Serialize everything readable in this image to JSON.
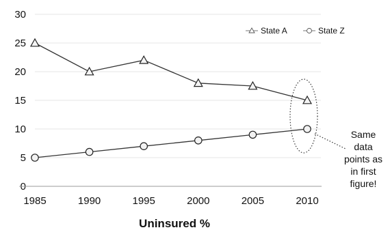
{
  "chart_data": {
    "type": "line",
    "title": "",
    "xlabel": "Uninsured %",
    "ylabel": "",
    "x": [
      1985,
      1990,
      1995,
      2000,
      2005,
      2010
    ],
    "xlim": [
      1985,
      2010
    ],
    "ylim": [
      0,
      30
    ],
    "yticks": [
      0,
      5,
      10,
      15,
      20,
      25,
      30
    ],
    "xticks": [
      1985,
      1990,
      1995,
      2000,
      2005,
      2010
    ],
    "grid": "horizontal",
    "legend_position": "top-right",
    "series": [
      {
        "name": "State A",
        "marker": "triangle",
        "values": [
          25,
          20,
          22,
          18,
          17.5,
          15
        ]
      },
      {
        "name": "State Z",
        "marker": "circle",
        "values": [
          5,
          6,
          7,
          8,
          9,
          10
        ]
      }
    ],
    "annotations": [
      {
        "text_lines": [
          "Same",
          "data",
          "points as",
          "in first",
          "figure!"
        ],
        "target_x": 2010
      }
    ]
  }
}
